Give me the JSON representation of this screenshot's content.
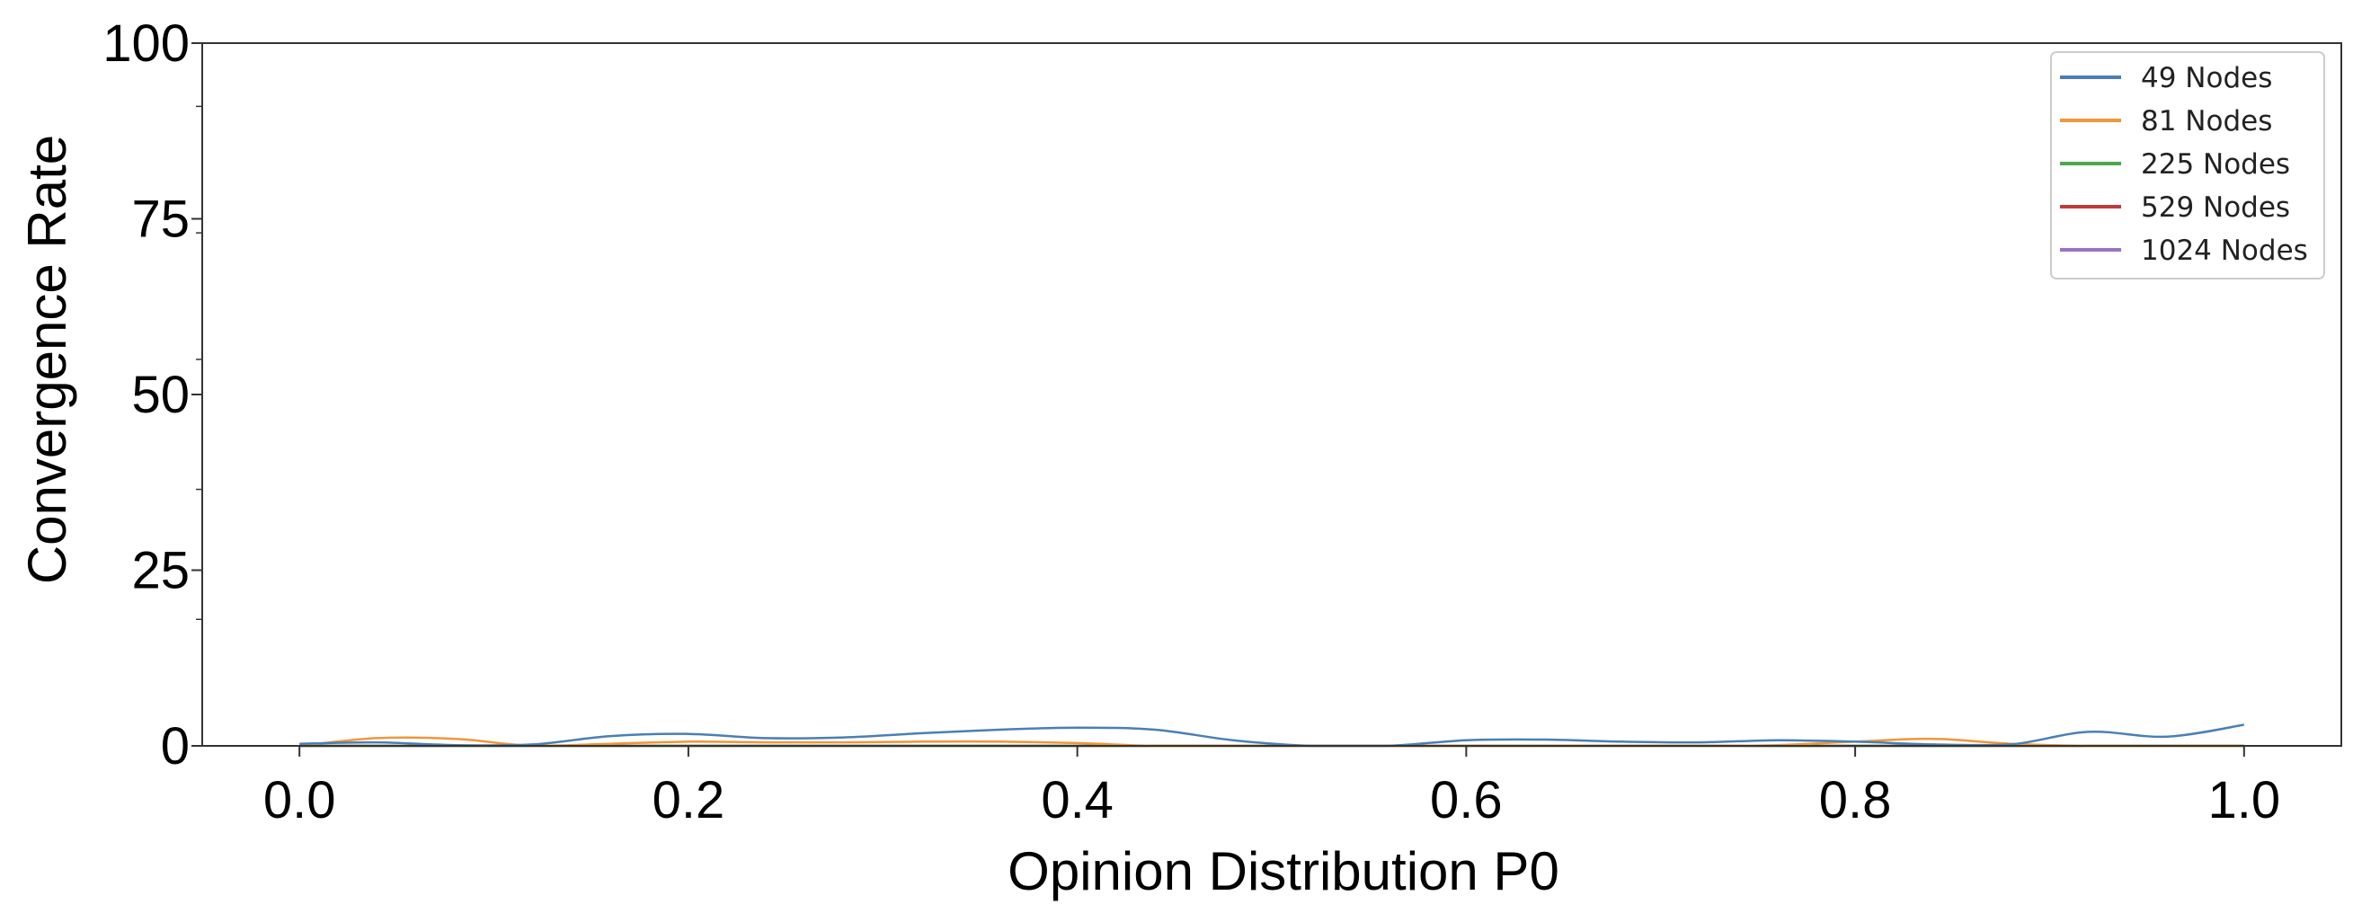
{
  "chart_data": {
    "type": "line",
    "xlabel": "Opinion Distribution P0",
    "ylabel": "Convergence Rate",
    "xlim": [
      -0.05,
      1.05
    ],
    "ylim": [
      0,
      100
    ],
    "x_ticks": [
      {
        "value": 0.0,
        "label": "0.0"
      },
      {
        "value": 0.2,
        "label": "0.2"
      },
      {
        "value": 0.4,
        "label": "0.4"
      },
      {
        "value": 0.6,
        "label": "0.6"
      },
      {
        "value": 0.8,
        "label": "0.8"
      },
      {
        "value": 1.0,
        "label": "1.0"
      }
    ],
    "y_ticks_major": [
      {
        "value": 0,
        "label": "0"
      },
      {
        "value": 25,
        "label": "25"
      },
      {
        "value": 50,
        "label": "50"
      },
      {
        "value": 75,
        "label": "75"
      },
      {
        "value": 100,
        "label": "100"
      }
    ],
    "y_ticks_minor": [
      18,
      36.5,
      55,
      73,
      91
    ],
    "grid": false,
    "legend_position": "top-right",
    "series": [
      {
        "name": "49 Nodes",
        "color": "#4a7fb5",
        "x": [
          0.0,
          0.04,
          0.08,
          0.12,
          0.16,
          0.2,
          0.24,
          0.28,
          0.32,
          0.36,
          0.4,
          0.44,
          0.48,
          0.52,
          0.56,
          0.6,
          0.64,
          0.68,
          0.72,
          0.76,
          0.8,
          0.84,
          0.88,
          0.92,
          0.96,
          1.0
        ],
        "y": [
          0.3,
          0.5,
          0.1,
          0.2,
          1.4,
          1.7,
          1.1,
          1.2,
          1.8,
          2.3,
          2.6,
          2.3,
          0.8,
          0.0,
          0.0,
          0.8,
          0.9,
          0.6,
          0.5,
          0.8,
          0.6,
          0.2,
          0.2,
          2.0,
          1.3,
          3.0
        ]
      },
      {
        "name": "81 Nodes",
        "color": "#f0963a",
        "x": [
          0.0,
          0.04,
          0.08,
          0.12,
          0.16,
          0.2,
          0.24,
          0.28,
          0.32,
          0.36,
          0.4,
          0.44,
          0.48,
          0.52,
          0.56,
          0.6,
          0.64,
          0.68,
          0.72,
          0.76,
          0.8,
          0.84,
          0.88,
          0.92,
          0.96,
          1.0
        ],
        "y": [
          0.0,
          1.1,
          1.0,
          0.0,
          0.3,
          0.6,
          0.5,
          0.5,
          0.6,
          0.6,
          0.4,
          0.0,
          0.0,
          0.0,
          0.0,
          0.0,
          0.0,
          0.0,
          0.0,
          0.1,
          0.6,
          1.0,
          0.3,
          0.0,
          0.0,
          0.0
        ]
      },
      {
        "name": "225 Nodes",
        "color": "#4ea64e",
        "x": [
          0.0,
          0.2,
          0.4,
          0.6,
          0.8,
          1.0
        ],
        "y": [
          0,
          0,
          0,
          0,
          0,
          0
        ]
      },
      {
        "name": "529 Nodes",
        "color": "#c23b3b",
        "x": [
          0.0,
          0.2,
          0.4,
          0.6,
          0.8,
          1.0
        ],
        "y": [
          0,
          0,
          0,
          0,
          0,
          0
        ]
      },
      {
        "name": "1024 Nodes",
        "color": "#9b72c4",
        "x": [
          0.0,
          0.2,
          0.4,
          0.6,
          0.8,
          1.0
        ],
        "y": [
          0,
          0,
          0,
          0,
          0,
          0
        ]
      }
    ]
  }
}
